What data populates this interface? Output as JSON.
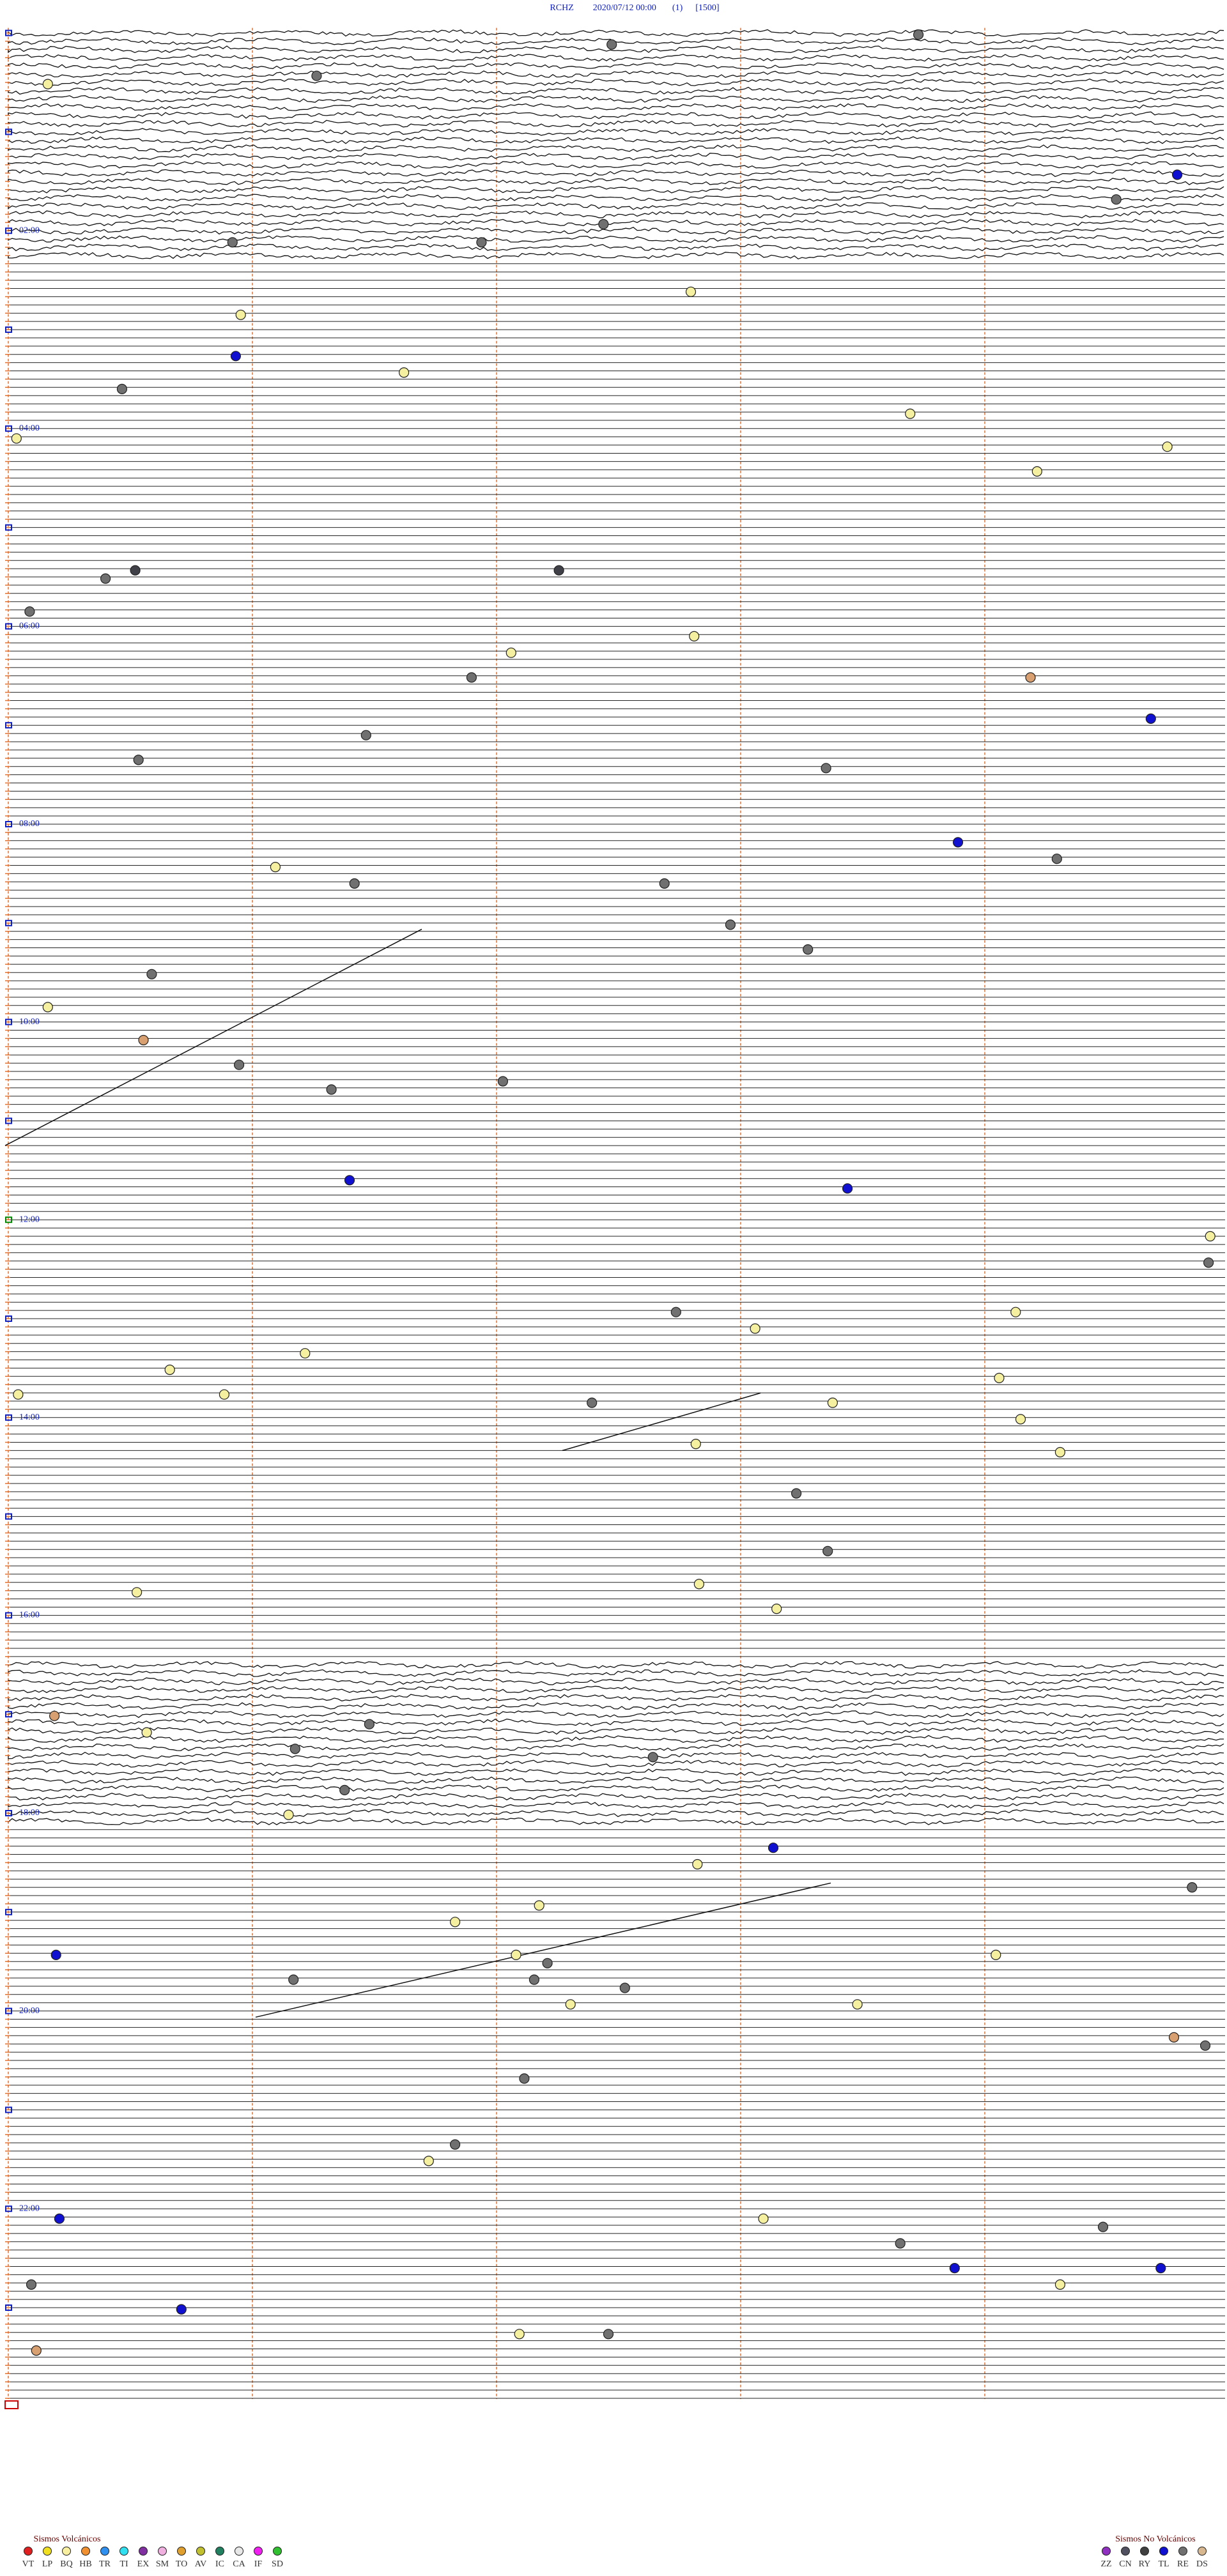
{
  "header": {
    "station": "RCHZ",
    "datetime": "2020/07/12 00:00",
    "channel": "(1)",
    "scale": "[1500]"
  },
  "time_labels": [
    "02:00",
    "04:00",
    "06:00",
    "08:00",
    "10:00",
    "12:00",
    "14:00",
    "16:00",
    "18:00",
    "20:00",
    "22:00"
  ],
  "legend": {
    "volcanic": {
      "title": "Sismos Volcánicos",
      "items": [
        {
          "code": "VT",
          "color": "#e02020"
        },
        {
          "code": "LP",
          "color": "#f0e020"
        },
        {
          "code": "BQ",
          "color": "#f8f0a0"
        },
        {
          "code": "HB",
          "color": "#f09030"
        },
        {
          "code": "TR",
          "color": "#3090f0"
        },
        {
          "code": "TI",
          "color": "#30e0f0"
        },
        {
          "code": "EX",
          "color": "#8030a0"
        },
        {
          "code": "SM",
          "color": "#f0b0e0"
        },
        {
          "code": "TO",
          "color": "#e0a030"
        },
        {
          "code": "AV",
          "color": "#c0c030"
        },
        {
          "code": "IC",
          "color": "#208060"
        },
        {
          "code": "CA",
          "color": "#e8e8e8"
        },
        {
          "code": "IF",
          "color": "#f020f0"
        },
        {
          "code": "SD",
          "color": "#30c030"
        }
      ]
    },
    "non_volcanic": {
      "title": "Sismos No Volcánicos",
      "items": [
        {
          "code": "ZZ",
          "color": "#9030c0"
        },
        {
          "code": "CN",
          "color": "#505060"
        },
        {
          "code": "RY",
          "color": "#404040"
        },
        {
          "code": "TL",
          "color": "#1010d0"
        },
        {
          "code": "RE",
          "color": "#707070"
        },
        {
          "code": "DS",
          "color": "#d8b890"
        }
      ]
    }
  }
}
